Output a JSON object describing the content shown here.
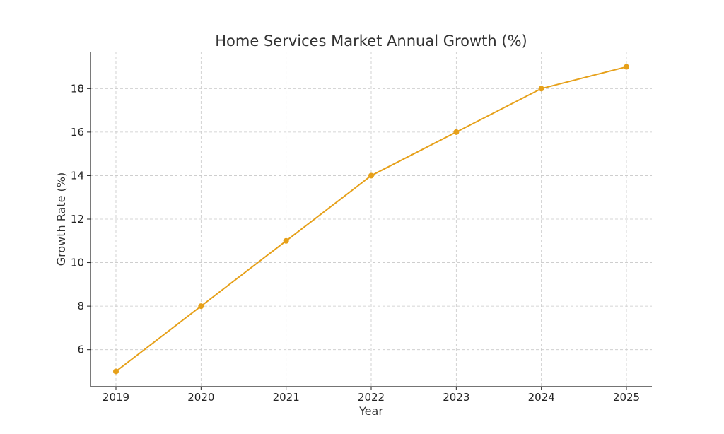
{
  "chart_data": {
    "type": "line",
    "title": "Home Services Market Annual Growth (%)",
    "xlabel": "Year",
    "ylabel": "Growth Rate (%)",
    "x": [
      "2019",
      "2020",
      "2021",
      "2022",
      "2023",
      "2024",
      "2025"
    ],
    "series": [
      {
        "values": [
          5,
          8,
          11,
          14,
          16,
          18,
          19
        ]
      }
    ],
    "yticks": [
      6,
      8,
      10,
      12,
      14,
      16,
      18
    ],
    "ylim": [
      4.3,
      19.7
    ],
    "grid": true,
    "line_color": "#E6A019",
    "marker": "circle"
  }
}
